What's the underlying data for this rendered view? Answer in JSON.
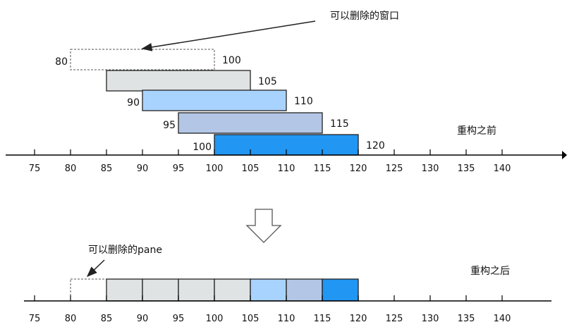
{
  "top": {
    "window_annotation": "可以删除的窗口",
    "caption": "重构之前",
    "windows": [
      {
        "start": 80,
        "end": 100,
        "start_label": "80",
        "end_label": "100",
        "color": "#ffffff",
        "dashed": true
      },
      {
        "start": 85,
        "end": 105,
        "start_label": "",
        "end_label": "105",
        "color": "#e0e3e3",
        "dashed": false
      },
      {
        "start": 90,
        "end": 110,
        "start_label": "90",
        "end_label": "110",
        "color": "#a9d3ff",
        "dashed": false
      },
      {
        "start": 95,
        "end": 115,
        "start_label": "95",
        "end_label": "115",
        "color": "#b3c6e6",
        "dashed": false
      },
      {
        "start": 100,
        "end": 120,
        "start_label": "100",
        "end_label": "120",
        "color": "#2196f3",
        "dashed": false
      }
    ],
    "axis_ticks": [
      "75",
      "80",
      "85",
      "90",
      "95",
      "100",
      "105",
      "110",
      "115",
      "120",
      "125",
      "130",
      "135",
      "140"
    ]
  },
  "transform_arrow_icon": "down-outline-arrow-icon",
  "bottom": {
    "pane_annotation": "可以删除的pane",
    "caption": "重构之后",
    "panes": [
      {
        "start": 80,
        "end": 85,
        "color": "#ffffff",
        "dashed": true
      },
      {
        "start": 85,
        "end": 90,
        "color": "#e0e3e3",
        "dashed": false
      },
      {
        "start": 90,
        "end": 95,
        "color": "#e0e3e3",
        "dashed": false
      },
      {
        "start": 95,
        "end": 100,
        "color": "#e0e3e3",
        "dashed": false
      },
      {
        "start": 100,
        "end": 105,
        "color": "#e0e3e3",
        "dashed": false
      },
      {
        "start": 105,
        "end": 110,
        "color": "#a9d3ff",
        "dashed": false
      },
      {
        "start": 110,
        "end": 115,
        "color": "#b3c6e6",
        "dashed": false
      },
      {
        "start": 115,
        "end": 120,
        "color": "#2196f3",
        "dashed": false
      }
    ],
    "axis_ticks": [
      "75",
      "80",
      "85",
      "90",
      "95",
      "100",
      "105",
      "110",
      "115",
      "120",
      "125",
      "130",
      "135",
      "140"
    ]
  }
}
